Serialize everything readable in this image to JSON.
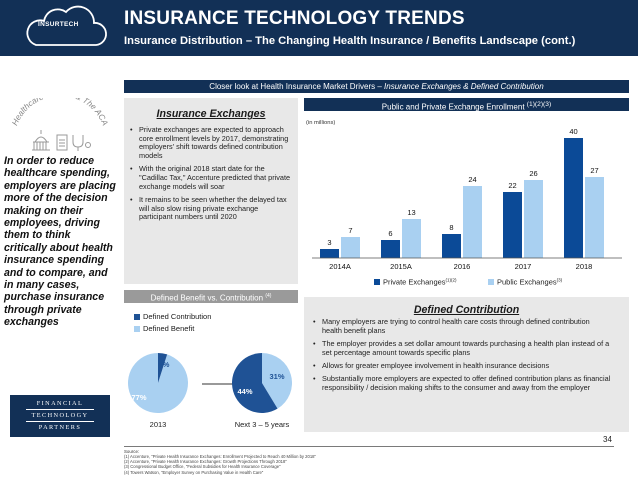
{
  "header": {
    "logo_text": "INSURTECH",
    "title": "INSURANCE TECHNOLOGY TRENDS",
    "subtitle": "Insurance Distribution – The Changing Health Insurance / Benefits Landscape (cont.)"
  },
  "section_bar": {
    "prefix": "Closer look at Health Insurance Market Drivers – ",
    "emphasis": "Insurance Exchanges & Defined Contribution"
  },
  "badge": {
    "text": "Healthcare Reform & The ACA"
  },
  "left_callout": "In order to reduce healthcare spending, employers are placing more of the decision making on their employees, driving them to think critically about health insurance spending and to compare, and in many cases, purchase insurance through private exchanges",
  "insurance_exchanges": {
    "title": "Insurance Exchanges",
    "bullets": [
      "Private exchanges are expected to approach core enrollment levels by 2017, demonstrating employers' shift towards defined contribution models",
      "With the original 2018 start date for the \"Cadillac Tax,\" Accenture predicted that private exchange models will soar",
      "It remains to be seen whether the delayed tax will also slow rising private exchange participant numbers until 2020"
    ]
  },
  "db_vs_dc": {
    "title": "Defined Benefit vs. Contribution",
    "title_sup": "(4)",
    "legend": [
      {
        "label": "Defined Contribution",
        "color": "#1f5295"
      },
      {
        "label": "Defined Benefit",
        "color": "#a9d0f1"
      }
    ],
    "pies": [
      {
        "label": "2013",
        "contribution_pct": 4,
        "benefit_pct": 77,
        "contribution_label": "4%",
        "benefit_label": "77%"
      },
      {
        "label": "Next 3 – 5 years",
        "contribution_pct": 44,
        "benefit_pct": 31,
        "contribution_label": "44%",
        "benefit_label": "31%"
      }
    ]
  },
  "enrollment": {
    "title": "Public and Private Exchange Enrollment",
    "title_sup": "(1)(2)(3)"
  },
  "chart_data": {
    "type": "bar",
    "title": "Public and Private Exchange Enrollment",
    "ylabel": "(in millions)",
    "xlabel": "",
    "categories": [
      "2014A",
      "2015A",
      "2016",
      "2017",
      "2018"
    ],
    "series": [
      {
        "name": "Private Exchanges",
        "sup": "(1)(2)",
        "color": "#0b4a97",
        "values": [
          3,
          6,
          8,
          22,
          40
        ]
      },
      {
        "name": "Public Exchanges",
        "sup": "(3)",
        "color": "#a9d0f1",
        "values": [
          7,
          13,
          24,
          26,
          27
        ]
      }
    ],
    "ylim": [
      0,
      42
    ],
    "data_labels": true,
    "grid": false
  },
  "defined_contribution": {
    "title": "Defined Contribution",
    "bullets": [
      "Many employers are trying to control health care costs through defined contribution health benefit plans",
      "The employer provides a set dollar amount towards purchasing a health plan instead of a set percentage amount towards specific plans",
      "Allows for greater employee involvement in health insurance decisions",
      "Substantially more employers are expected to offer defined contribution plans as financial responsibility / decision making shifts to the consumer and away from the employer"
    ]
  },
  "ftp_logo": [
    "FINANCIAL",
    "TECHNOLOGY",
    "PARTNERS"
  ],
  "page_number": "34",
  "footer": {
    "source_label": "Source:",
    "notes": [
      "(1) Accenture, \"Private Health Insurance Exchanges: Enrollment Projected to Reach 40 Million by 2018\"",
      "(2) Accenture, \"Private Health Insurance Exchanges: Growth Projections Through 2018\"",
      "(3) Congressional Budget Office, \"Federal Subsidies for Health Insurance Coverage\"",
      "(4) Towers Watson, \"Employer Survey on Purchasing Value in Health Care\""
    ]
  }
}
